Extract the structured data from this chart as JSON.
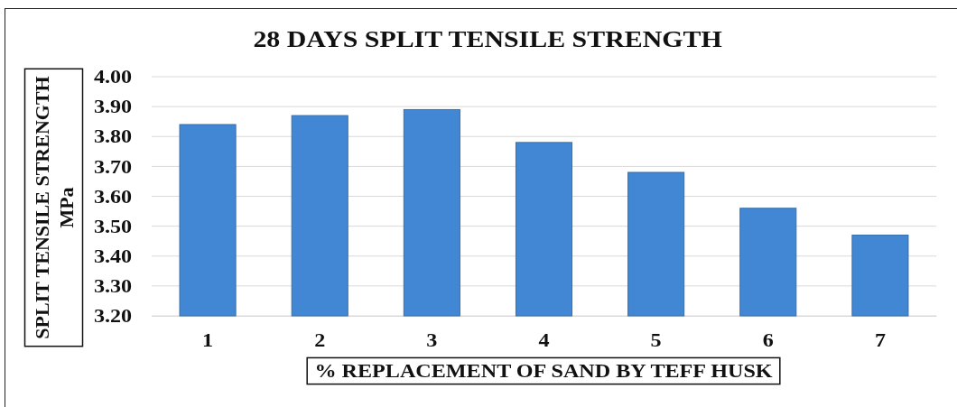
{
  "chart_data": {
    "type": "bar",
    "title": "28 DAYS SPLIT TENSILE STRENGTH",
    "xlabel": "% REPLACEMENT OF SAND BY TEFF HUSK",
    "ylabel": "SPLIT TENSILE STRENGTH\nMPa",
    "categories": [
      "1",
      "2",
      "3",
      "4",
      "5",
      "6",
      "7"
    ],
    "values": [
      3.84,
      3.87,
      3.89,
      3.78,
      3.68,
      3.56,
      3.47
    ],
    "color": "#4287d3",
    "ylim": [
      3.2,
      4.0
    ],
    "yticks": [
      {
        "value": 3.2,
        "label": "3.20"
      },
      {
        "value": 3.3,
        "label": "3.30"
      },
      {
        "value": 3.4,
        "label": "3.40"
      },
      {
        "value": 3.5,
        "label": "3.50"
      },
      {
        "value": 3.6,
        "label": "3.60"
      },
      {
        "value": 3.7,
        "label": "3.70"
      },
      {
        "value": 3.8,
        "label": "3.80"
      },
      {
        "value": 3.9,
        "label": "3.90"
      },
      {
        "value": 4.0,
        "label": "4.00"
      }
    ],
    "grid": "y"
  }
}
